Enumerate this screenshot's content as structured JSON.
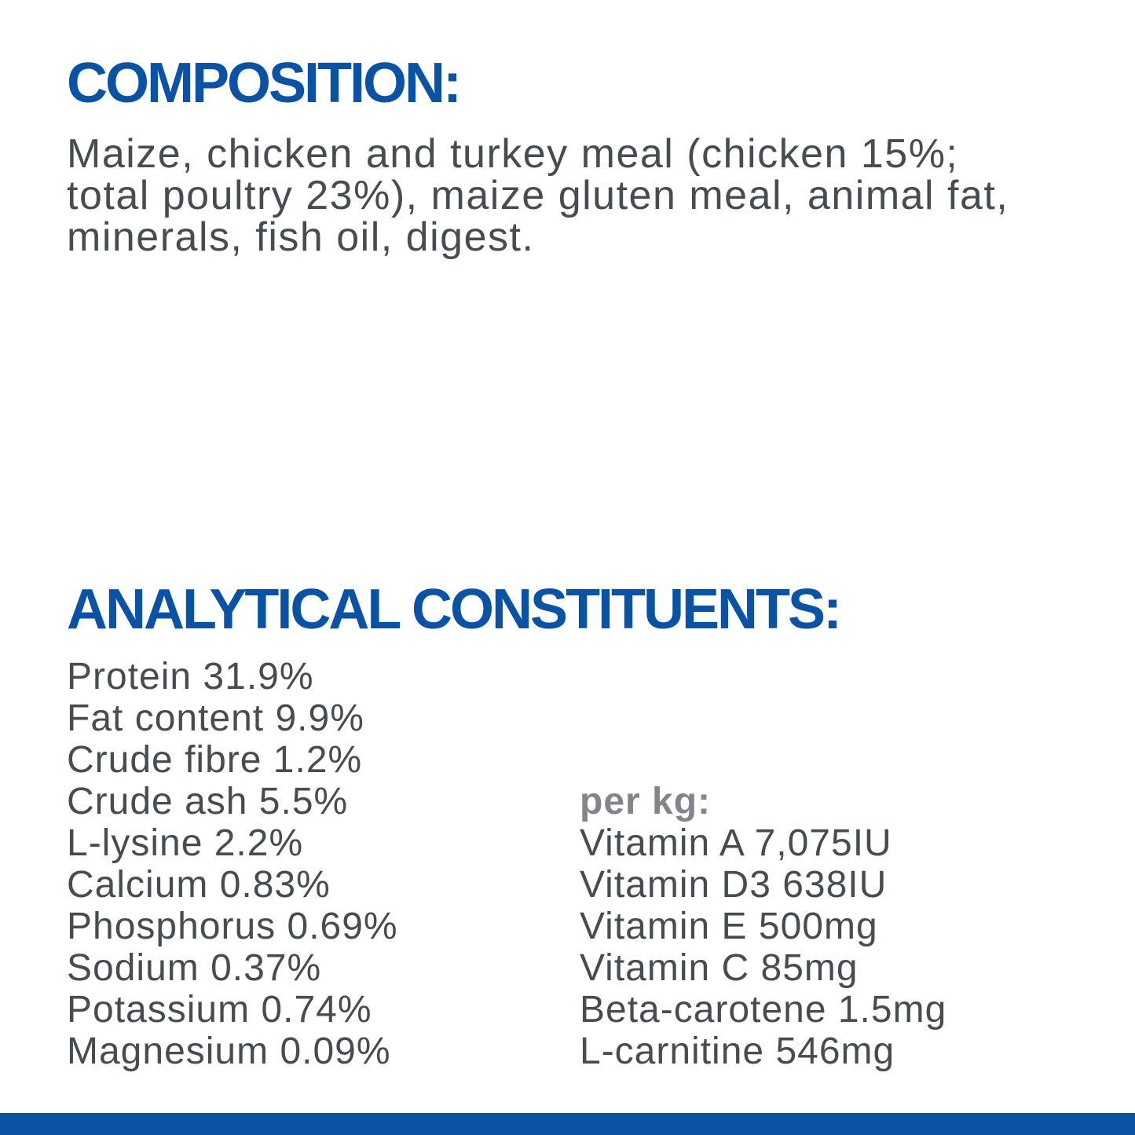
{
  "colors": {
    "brand_blue": "#0a52a5",
    "body_text_gray": "#474c51",
    "per_kg_label_gray": "#828589",
    "background": "#ffffff"
  },
  "composition": {
    "heading": "COMPOSITION:",
    "body_lines": [
      "Maize, chicken and turkey meal (chicken 15%;",
      "total poultry 23%), maize gluten meal, animal fat,",
      "minerals, fish oil, digest."
    ]
  },
  "analytical": {
    "heading": "ANALYTICAL CONSTITUENTS:",
    "constituents": [
      "Protein 31.9%",
      "Fat content 9.9%",
      "Crude fibre 1.2%",
      "Crude ash 5.5%",
      "L-lysine 2.2%",
      "Calcium 0.83%",
      "Phosphorus 0.69%",
      "Sodium 0.37%",
      "Potassium 0.74%",
      "Magnesium 0.09%"
    ],
    "per_kg": {
      "label": "per kg:",
      "items": [
        "Vitamin A 7,075IU",
        "Vitamin D3 638IU",
        "Vitamin E 500mg",
        "Vitamin C 85mg",
        "Beta-carotene 1.5mg",
        "L-carnitine 546mg"
      ]
    }
  }
}
